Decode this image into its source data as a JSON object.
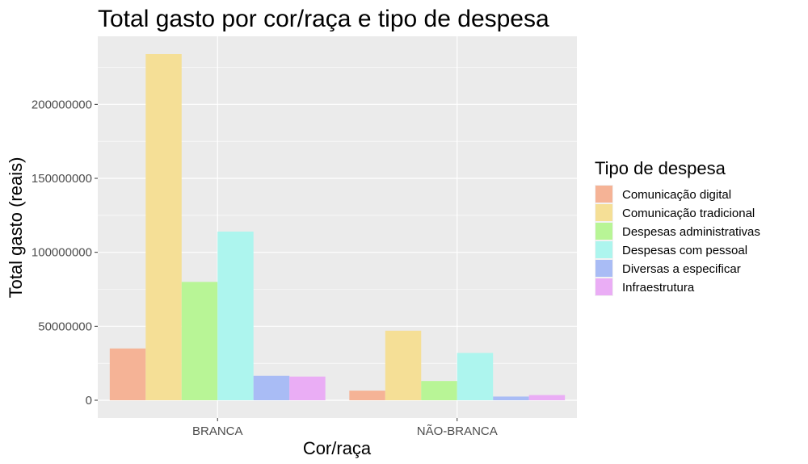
{
  "chart_data": {
    "type": "bar",
    "title": "Total gasto por cor/raça e tipo de despesa",
    "xlabel": "Cor/raça",
    "ylabel": "Total gasto (reais)",
    "categories": [
      "BRANCA",
      "NÃO-BRANCA"
    ],
    "ylim": [
      -12000000,
      246000000
    ],
    "yticks": [
      0,
      50000000,
      100000000,
      150000000,
      200000000
    ],
    "ytick_labels": [
      "0",
      "50000000",
      "100000000",
      "150000000",
      "200000000"
    ],
    "grid": true,
    "legend_title": "Tipo de despesa",
    "legend_position": "right",
    "series": [
      {
        "name": "Comunicação digital",
        "color": "#F5B396",
        "values": [
          35000000,
          6500000
        ]
      },
      {
        "name": "Comunicação tradicional",
        "color": "#F5DF96",
        "values": [
          234000000,
          47000000
        ]
      },
      {
        "name": "Despesas administrativas",
        "color": "#B8F596",
        "values": [
          80000000,
          13000000
        ]
      },
      {
        "name": "Despesas com pessoal",
        "color": "#ADF5EE",
        "values": [
          114000000,
          32000000
        ]
      },
      {
        "name": "Diversas a especificar",
        "color": "#A9BCF5",
        "values": [
          16500000,
          2500000
        ]
      },
      {
        "name": "Infraestrutura",
        "color": "#EAADF5",
        "values": [
          16000000,
          3500000
        ]
      }
    ]
  }
}
